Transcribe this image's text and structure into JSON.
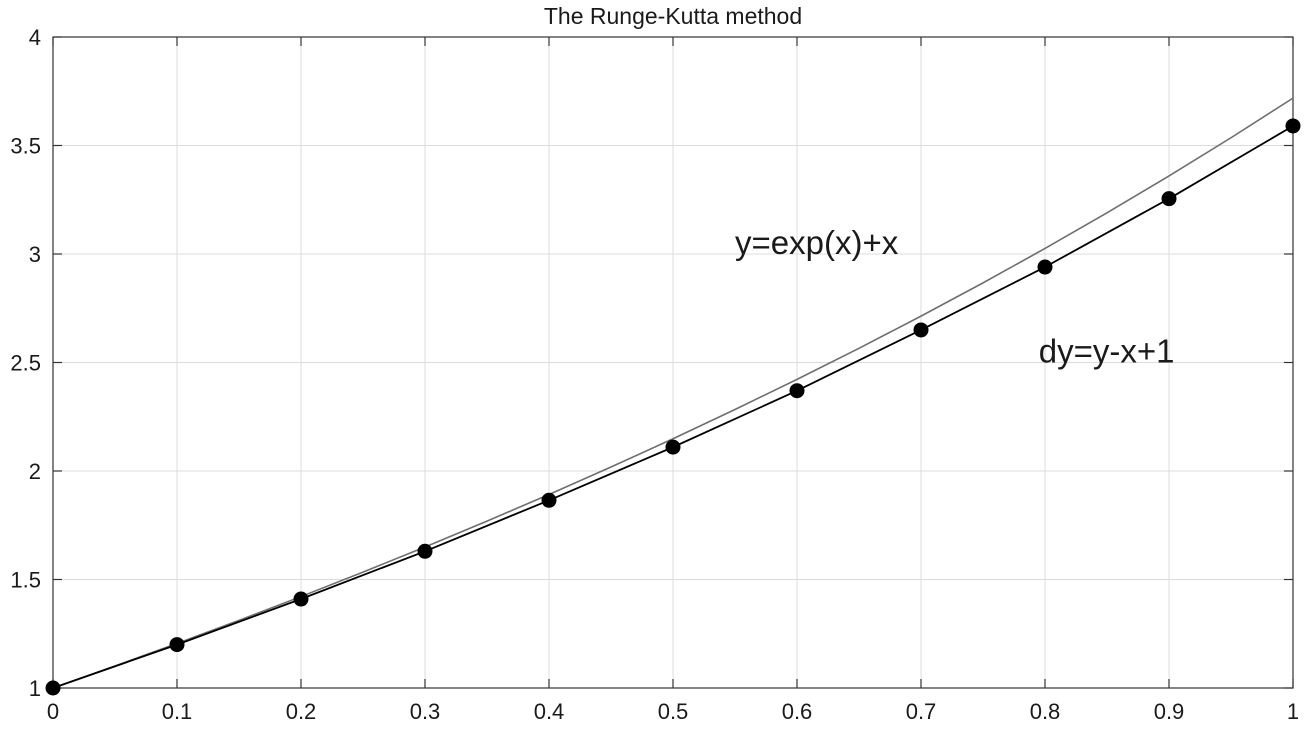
{
  "chart_data": {
    "type": "line",
    "title": "The Runge-Kutta method",
    "xlabel": "",
    "ylabel": "",
    "xlim": [
      0,
      1
    ],
    "ylim": [
      1,
      4
    ],
    "xticks": [
      0,
      0.1,
      0.2,
      0.3,
      0.4,
      0.5,
      0.6,
      0.7,
      0.8,
      0.9,
      1
    ],
    "xtick_labels": [
      "0",
      "0.1",
      "0.2",
      "0.3",
      "0.4",
      "0.5",
      "0.6",
      "0.7",
      "0.8",
      "0.9",
      "1"
    ],
    "yticks": [
      1,
      1.5,
      2,
      2.5,
      3,
      3.5,
      4
    ],
    "ytick_labels": [
      "1",
      "1.5",
      "2",
      "2.5",
      "3",
      "3.5",
      "4"
    ],
    "grid": true,
    "annotations": [
      {
        "text": "y=exp(x)+x",
        "x": 0.55,
        "y": 3.0
      },
      {
        "text": "dy=y-x+1",
        "x": 0.795,
        "y": 2.5
      }
    ],
    "series": [
      {
        "color": "#6e6e6e",
        "marker": "none",
        "x": [
          0,
          0.05,
          0.1,
          0.15,
          0.2,
          0.25,
          0.3,
          0.35,
          0.4,
          0.45,
          0.5,
          0.55,
          0.6,
          0.65,
          0.7,
          0.75,
          0.8,
          0.85,
          0.9,
          0.95,
          1
        ],
        "y": [
          1,
          1.1013,
          1.2052,
          1.3118,
          1.4214,
          1.534,
          1.6499,
          1.7691,
          1.8918,
          2.0183,
          2.1487,
          2.2833,
          2.4221,
          2.5655,
          2.7138,
          2.867,
          3.0255,
          3.1896,
          3.3596,
          3.5357,
          3.7183
        ]
      },
      {
        "color": "#000000",
        "marker": "circle",
        "x": [
          0,
          0.1,
          0.2,
          0.3,
          0.4,
          0.5,
          0.6,
          0.7,
          0.8,
          0.9,
          1
        ],
        "y": [
          1,
          1.2,
          1.41,
          1.63,
          1.865,
          2.11,
          2.37,
          2.65,
          2.94,
          3.255,
          3.59
        ]
      }
    ]
  },
  "style": {
    "grid_color": "#dcdcdc",
    "axis_color": "#333333",
    "background": "#ffffff"
  }
}
